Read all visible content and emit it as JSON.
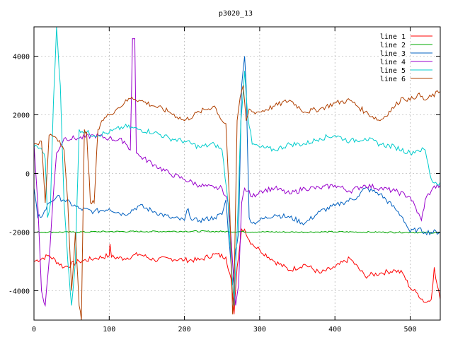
{
  "chart_data": {
    "type": "line",
    "title": "p3020_13",
    "xlabel": "",
    "ylabel": "",
    "xlim": [
      0,
      540
    ],
    "ylim": [
      -5000,
      5000
    ],
    "x_ticks": [
      0,
      100,
      200,
      300,
      400,
      500
    ],
    "y_ticks": [
      -4000,
      -2000,
      0,
      2000,
      4000
    ],
    "grid": true,
    "legend_position": "top-right",
    "series": [
      {
        "name": "line 1",
        "color": "#ff0000",
        "x": [
          0,
          20,
          40,
          60,
          80,
          100,
          101,
          103,
          120,
          140,
          160,
          180,
          200,
          220,
          240,
          255,
          262,
          266,
          270,
          276,
          280,
          284,
          290,
          300,
          320,
          340,
          360,
          380,
          400,
          420,
          440,
          460,
          480,
          490,
          500,
          510,
          520,
          528,
          532,
          536,
          540
        ],
        "y": [
          -3000,
          -2800,
          -3200,
          -3000,
          -2900,
          -2800,
          -2400,
          -2850,
          -2900,
          -2750,
          -2950,
          -2900,
          -2950,
          -2950,
          -2750,
          -2850,
          -3600,
          -4800,
          -3200,
          -1900,
          -1900,
          -2200,
          -2400,
          -2600,
          -3000,
          -3300,
          -3100,
          -3400,
          -3200,
          -2900,
          -3500,
          -3400,
          -3300,
          -3400,
          -3900,
          -4100,
          -4400,
          -4300,
          -3200,
          -3800,
          -4300
        ]
      },
      {
        "name": "line 2",
        "color": "#00aa00",
        "x": [
          0,
          50,
          100,
          150,
          200,
          250,
          300,
          350,
          400,
          450,
          500,
          540
        ],
        "y": [
          -2000,
          -2000,
          -1980,
          -1980,
          -1970,
          -1980,
          -1990,
          -2000,
          -1990,
          -2000,
          -2010,
          -2020
        ]
      },
      {
        "name": "line 3",
        "color": "#0060c0",
        "x": [
          0,
          5,
          12,
          20,
          30,
          40,
          60,
          80,
          100,
          120,
          140,
          160,
          180,
          200,
          205,
          210,
          220,
          240,
          250,
          255,
          260,
          264,
          268,
          272,
          276,
          280,
          282,
          286,
          290,
          300,
          320,
          340,
          360,
          380,
          400,
          410,
          430,
          440,
          460,
          480,
          490,
          500,
          510,
          520,
          540
        ],
        "y": [
          -500,
          -1500,
          -1400,
          -1000,
          -800,
          -900,
          -1200,
          -1300,
          -1200,
          -1400,
          -1100,
          -1300,
          -1500,
          -1600,
          -1200,
          -1600,
          -1600,
          -1500,
          -1400,
          -900,
          -2500,
          -3800,
          -2600,
          -2000,
          3000,
          4000,
          3000,
          -1500,
          -1700,
          -1600,
          -1400,
          -1500,
          -1700,
          -1300,
          -1100,
          -1000,
          -800,
          -500,
          -700,
          -1200,
          -1500,
          -2000,
          -1900,
          -2000,
          -2000
        ]
      },
      {
        "name": "line 4",
        "color": "#9900cc",
        "x": [
          0,
          5,
          10,
          15,
          20,
          25,
          30,
          40,
          60,
          80,
          100,
          120,
          128,
          131,
          134,
          136,
          140,
          160,
          180,
          200,
          220,
          240,
          250,
          258,
          262,
          268,
          272,
          276,
          280,
          284,
          290,
          300,
          320,
          340,
          360,
          380,
          400,
          420,
          440,
          460,
          480,
          500,
          515,
          520,
          530,
          540
        ],
        "y": [
          1000,
          -1000,
          -4000,
          -4500,
          -3000,
          -1000,
          700,
          1200,
          1200,
          1300,
          1200,
          1100,
          800,
          4600,
          4600,
          700,
          600,
          300,
          0,
          -200,
          -400,
          -500,
          -500,
          -1000,
          -2200,
          -4500,
          -3800,
          -1000,
          -500,
          -600,
          -800,
          -600,
          -500,
          -700,
          -500,
          -500,
          -400,
          -600,
          -400,
          -500,
          -600,
          -800,
          -1600,
          -900,
          -500,
          -400
        ]
      },
      {
        "name": "line 5",
        "color": "#00cccc",
        "x": [
          0,
          10,
          15,
          18,
          22,
          26,
          30,
          35,
          40,
          45,
          50,
          55,
          60,
          70,
          80,
          100,
          120,
          140,
          160,
          180,
          200,
          220,
          240,
          250,
          258,
          262,
          266,
          270,
          275,
          280,
          284,
          290,
          300,
          320,
          340,
          360,
          380,
          400,
          420,
          440,
          460,
          480,
          500,
          510,
          520,
          526,
          530,
          534,
          538,
          540
        ],
        "y": [
          900,
          850,
          500,
          -1500,
          -1000,
          2500,
          5000,
          3000,
          -1000,
          -3000,
          -4500,
          -3000,
          1500,
          1400,
          1300,
          1400,
          1600,
          1500,
          1400,
          1200,
          1100,
          900,
          1000,
          800,
          -1000,
          -3000,
          -4500,
          -2000,
          1800,
          3500,
          2000,
          1000,
          900,
          800,
          1000,
          1000,
          1200,
          1300,
          1100,
          1200,
          1000,
          900,
          700,
          800,
          800,
          0,
          -300,
          -300,
          -400,
          -300
        ]
      },
      {
        "name": "line 6",
        "color": "#b04000",
        "x": [
          0,
          10,
          15,
          20,
          30,
          40,
          45,
          50,
          55,
          60,
          63,
          67,
          70,
          75,
          80,
          85,
          90,
          100,
          110,
          120,
          130,
          140,
          160,
          180,
          200,
          220,
          240,
          250,
          255,
          260,
          264,
          266,
          270,
          274,
          278,
          282,
          286,
          290,
          300,
          320,
          340,
          360,
          380,
          400,
          420,
          440,
          460,
          480,
          490,
          500,
          510,
          520,
          540
        ],
        "y": [
          1000,
          1100,
          -1000,
          1300,
          1200,
          800,
          -1000,
          -4000,
          -2000,
          -4500,
          -5000,
          1500,
          1400,
          -1000,
          -1000,
          1500,
          1800,
          2000,
          2200,
          2400,
          2600,
          2500,
          2300,
          2100,
          1800,
          2100,
          2300,
          1800,
          1700,
          -1000,
          -4800,
          -4000,
          1800,
          2600,
          3000,
          1800,
          2200,
          2100,
          2100,
          2300,
          2500,
          2100,
          2200,
          2400,
          2500,
          2100,
          1800,
          2300,
          2600,
          2500,
          2700,
          2500,
          2800
        ]
      }
    ]
  }
}
